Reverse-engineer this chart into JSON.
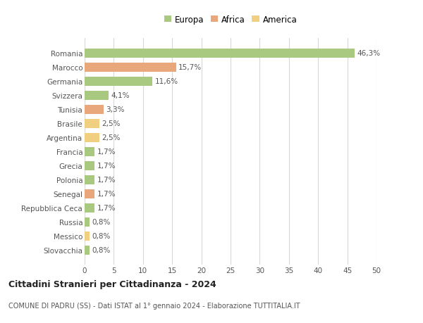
{
  "countries": [
    "Romania",
    "Marocco",
    "Germania",
    "Svizzera",
    "Tunisia",
    "Brasile",
    "Argentina",
    "Francia",
    "Grecia",
    "Polonia",
    "Senegal",
    "Repubblica Ceca",
    "Russia",
    "Messico",
    "Slovacchia"
  ],
  "values": [
    46.3,
    15.7,
    11.6,
    4.1,
    3.3,
    2.5,
    2.5,
    1.7,
    1.7,
    1.7,
    1.7,
    1.7,
    0.8,
    0.8,
    0.8
  ],
  "labels": [
    "46,3%",
    "15,7%",
    "11,6%",
    "4,1%",
    "3,3%",
    "2,5%",
    "2,5%",
    "1,7%",
    "1,7%",
    "1,7%",
    "1,7%",
    "1,7%",
    "0,8%",
    "0,8%",
    "0,8%"
  ],
  "continents": [
    "Europa",
    "Africa",
    "Europa",
    "Europa",
    "Africa",
    "America",
    "America",
    "Europa",
    "Europa",
    "Europa",
    "Africa",
    "Europa",
    "Europa",
    "America",
    "Europa"
  ],
  "colors": {
    "Europa": "#a8c97f",
    "Africa": "#e8a87c",
    "America": "#f0d080"
  },
  "title": "Cittadini Stranieri per Cittadinanza - 2024",
  "subtitle": "COMUNE DI PADRU (SS) - Dati ISTAT al 1° gennaio 2024 - Elaborazione TUTTITALIA.IT",
  "xlim": [
    0,
    50
  ],
  "xticks": [
    0,
    5,
    10,
    15,
    20,
    25,
    30,
    35,
    40,
    45,
    50
  ],
  "background_color": "#ffffff",
  "grid_color": "#d8d8d8",
  "bar_height": 0.65,
  "label_fontsize": 7.5,
  "ytick_fontsize": 7.5,
  "xtick_fontsize": 7.5,
  "legend_fontsize": 8.5,
  "title_fontsize": 9,
  "subtitle_fontsize": 7
}
